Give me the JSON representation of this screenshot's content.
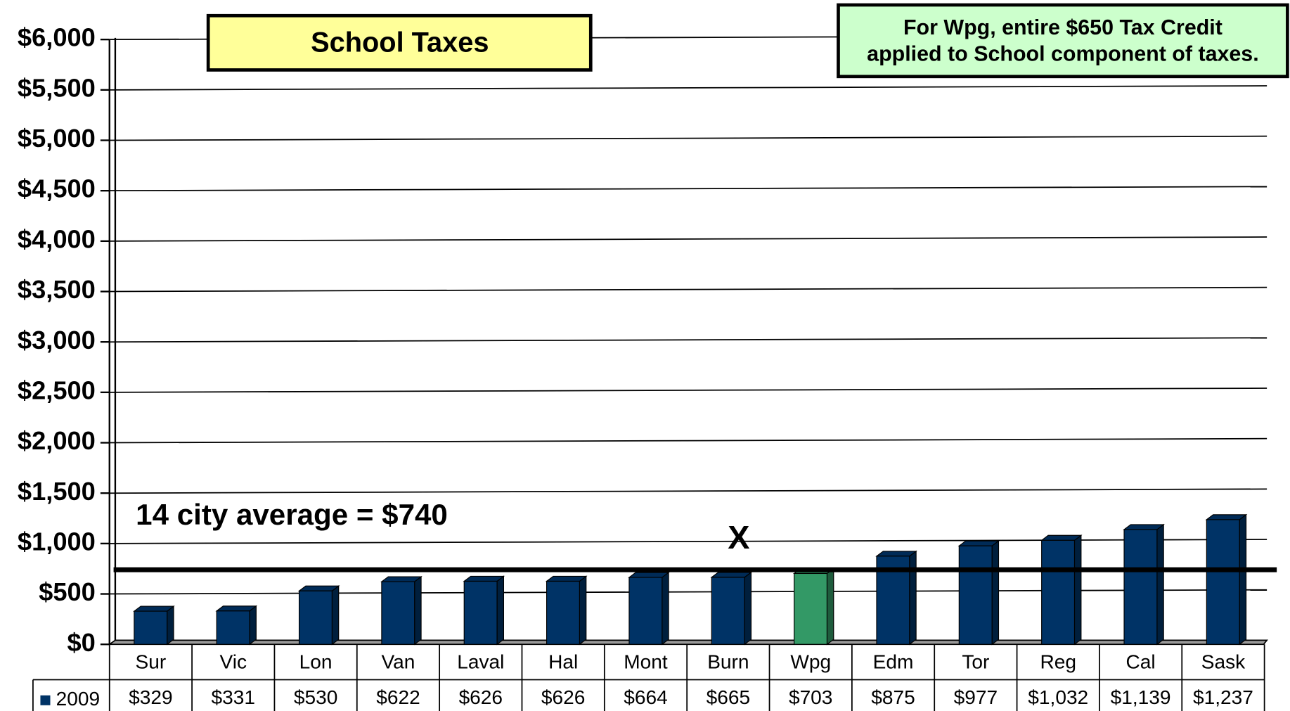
{
  "chart_data": {
    "type": "bar",
    "title": "School Taxes",
    "annotations": [
      "For Wpg, entire $650 Tax Credit",
      "applied to School component of taxes.",
      "14 city average = $740",
      "X"
    ],
    "reference_line": 740,
    "categories": [
      "Sur",
      "Vic",
      "Lon",
      "Van",
      "Laval",
      "Hal",
      "Mont",
      "Burn",
      "Wpg",
      "Edm",
      "Tor",
      "Reg",
      "Cal",
      "Sask"
    ],
    "series": [
      {
        "name": "2009",
        "color": "#003366",
        "colors": [
          "#003366",
          "#003366",
          "#003366",
          "#003366",
          "#003366",
          "#003366",
          "#003366",
          "#003366",
          "#339966",
          "#003366",
          "#003366",
          "#003366",
          "#003366",
          "#003366"
        ],
        "values": [
          329,
          331,
          530,
          622,
          626,
          626,
          664,
          665,
          703,
          875,
          977,
          1032,
          1139,
          1237
        ],
        "value_labels": [
          "$329",
          "$331",
          "$530",
          "$622",
          "$626",
          "$626",
          "$664",
          "$665",
          "$703",
          "$875",
          "$977",
          "$1,032",
          "$1,139",
          "$1,237"
        ]
      }
    ],
    "ylim": [
      0,
      6000
    ],
    "yticks": [
      {
        "value": 0,
        "label": "$0"
      },
      {
        "value": 500,
        "label": "$500"
      },
      {
        "value": 1000,
        "label": "$1,000"
      },
      {
        "value": 1500,
        "label": "$1,500"
      },
      {
        "value": 2000,
        "label": "$2,000"
      },
      {
        "value": 2500,
        "label": "$2,500"
      },
      {
        "value": 3000,
        "label": "$3,000"
      },
      {
        "value": 3500,
        "label": "$3,500"
      },
      {
        "value": 4000,
        "label": "$4,000"
      },
      {
        "value": 4500,
        "label": "$4,500"
      },
      {
        "value": 5000,
        "label": "$5,000"
      },
      {
        "value": 5500,
        "label": "$5,500"
      },
      {
        "value": 6000,
        "label": "$6,000"
      }
    ],
    "grid": true
  }
}
